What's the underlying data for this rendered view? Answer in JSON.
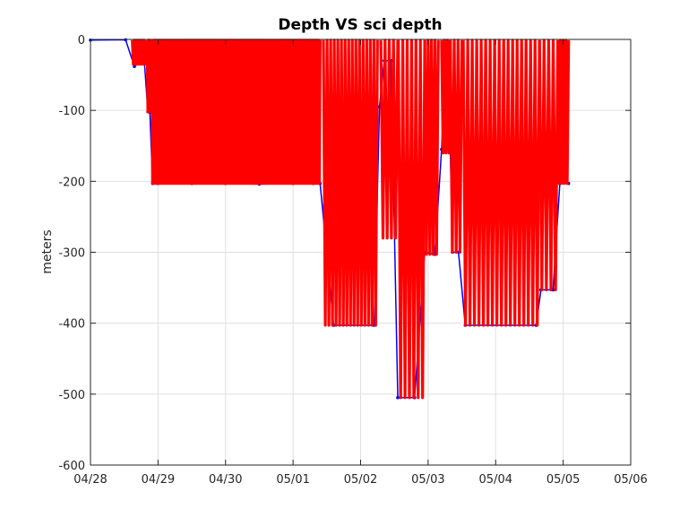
{
  "chart_data": {
    "type": "line",
    "title": "Depth VS sci depth",
    "xlabel": "",
    "ylabel": "meters",
    "xlim": [
      "04/28",
      "05/06"
    ],
    "ylim": [
      -600,
      0
    ],
    "grid": true,
    "xticks": [
      "04/28",
      "04/29",
      "04/30",
      "05/01",
      "05/02",
      "05/03",
      "05/04",
      "05/05",
      "05/06"
    ],
    "yticks": [
      0,
      -100,
      -200,
      -300,
      -400,
      -500,
      -600
    ],
    "colors": {
      "depth": "#0000ff",
      "sci_depth": "#ff0000"
    },
    "series": [
      {
        "key": "depth",
        "description_color": "blue",
        "points": [
          [
            0.0,
            -1
          ],
          [
            0.52,
            -0.5
          ],
          [
            0.65,
            -38
          ],
          [
            0.67,
            -35
          ],
          [
            0.72,
            -34
          ],
          [
            0.8,
            -34
          ],
          [
            0.85,
            -102
          ],
          [
            0.88,
            -103
          ],
          [
            0.92,
            -203
          ],
          [
            1.0,
            -203
          ],
          [
            1.5,
            -203
          ],
          [
            2.0,
            -203
          ],
          [
            2.5,
            -204
          ],
          [
            3.0,
            -203
          ],
          [
            3.3,
            -203
          ],
          [
            3.4,
            -203
          ],
          [
            3.6,
            -403
          ],
          [
            4.2,
            -403
          ],
          [
            4.28,
            -95
          ],
          [
            4.35,
            -30
          ],
          [
            4.45,
            -30
          ],
          [
            4.55,
            -505
          ],
          [
            4.8,
            -505
          ],
          [
            4.95,
            -300
          ],
          [
            5.1,
            -303
          ],
          [
            5.2,
            -155
          ],
          [
            5.25,
            -32
          ],
          [
            5.3,
            -32
          ],
          [
            5.36,
            -300
          ],
          [
            5.45,
            -300
          ],
          [
            5.55,
            -403
          ],
          [
            6.6,
            -403
          ],
          [
            6.67,
            -353
          ],
          [
            6.85,
            -353
          ],
          [
            6.95,
            -203
          ],
          [
            7.08,
            -203
          ]
        ]
      },
      {
        "key": "sci_depth",
        "description_color": "red",
        "segments": [
          {
            "x0": 0.62,
            "x1": 0.82,
            "depth": -35,
            "period": 0.03
          },
          {
            "x0": 0.84,
            "x1": 0.9,
            "depth": -102,
            "period": 0.02
          },
          {
            "x0": 0.91,
            "x1": 3.4,
            "depth": -203,
            "period": 0.02
          },
          {
            "x0": 3.45,
            "x1": 4.25,
            "depth": -403,
            "period": 0.055
          },
          {
            "x0": 4.3,
            "x1": 4.55,
            "depth": -280,
            "period": 0.06
          },
          {
            "x0": 4.56,
            "x1": 4.95,
            "depth": -505,
            "period": 0.07
          },
          {
            "x0": 4.95,
            "x1": 5.15,
            "depth": -303,
            "period": 0.05
          },
          {
            "x0": 5.2,
            "x1": 5.33,
            "depth": -160,
            "period": 0.05
          },
          {
            "x0": 5.33,
            "x1": 5.5,
            "depth": -300,
            "period": 0.055
          },
          {
            "x0": 5.52,
            "x1": 6.65,
            "depth": -403,
            "period": 0.065
          },
          {
            "x0": 6.65,
            "x1": 6.92,
            "depth": -353,
            "period": 0.06
          },
          {
            "x0": 6.92,
            "x1": 7.08,
            "depth": -203,
            "period": 0.04
          }
        ]
      }
    ]
  }
}
